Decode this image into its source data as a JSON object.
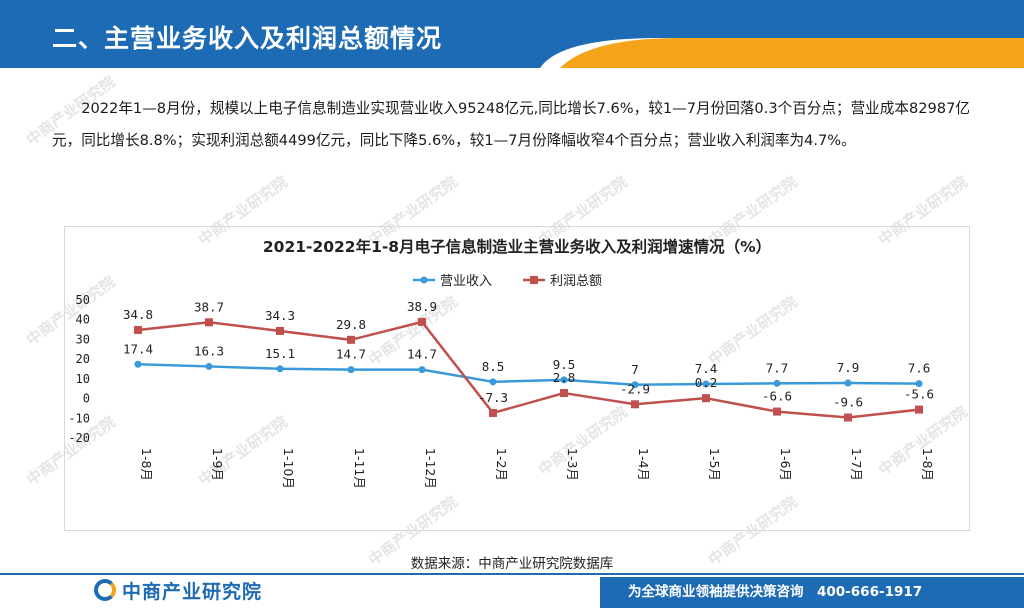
{
  "header": {
    "title": "二、主营业务收入及利润总额情况"
  },
  "intro": {
    "text": "2022年1—8月份，规模以上电子信息制造业实现营业收入95248亿元,同比增长7.6%，较1—7月份回落0.3个百分点；营业成本82987亿元，同比增长8.8%；实现利润总额4499亿元，同比下降5.6%，较1—7月份降幅收窄4个百分点；营业收入利润率为4.7%。"
  },
  "watermark": {
    "text": "中商产业研究院"
  },
  "chart_data": {
    "type": "line",
    "title": "2021-2022年1-8月电子信息制造业主营业务收入及利润增速情况（%）",
    "xlabel": "",
    "ylabel": "",
    "categories": [
      "1-8月",
      "1-9月",
      "1-10月",
      "1-11月",
      "1-12月",
      "1-2月",
      "1-3月",
      "1-4月",
      "1-5月",
      "1-6月",
      "1-7月",
      "1-8月"
    ],
    "series": [
      {
        "name": "营业收入",
        "color": "#3a9ad9",
        "marker": "circle",
        "values": [
          17.4,
          16.3,
          15.1,
          14.7,
          14.7,
          8.5,
          9.5,
          7,
          7.4,
          7.7,
          7.9,
          7.6
        ]
      },
      {
        "name": "利润总额",
        "color": "#c0504d",
        "marker": "square",
        "values": [
          34.8,
          38.7,
          34.3,
          29.8,
          38.9,
          -7.3,
          2.8,
          -2.9,
          0.2,
          -6.6,
          -9.6,
          -5.6
        ]
      }
    ],
    "yticks": [
      50,
      40,
      30,
      20,
      10,
      0,
      -10,
      -20
    ],
    "ylim": [
      -20,
      50
    ],
    "grid": false,
    "legend": "top-center"
  },
  "source": {
    "text": "数据来源：中商产业研究院数据库"
  },
  "footer": {
    "logo_text": "中商产业研究院",
    "slogan": "为全球商业领袖提供决策咨询　400-666-1917"
  },
  "colors": {
    "accent_blue": "#1e6bb5",
    "accent_orange": "#f4a31a"
  }
}
